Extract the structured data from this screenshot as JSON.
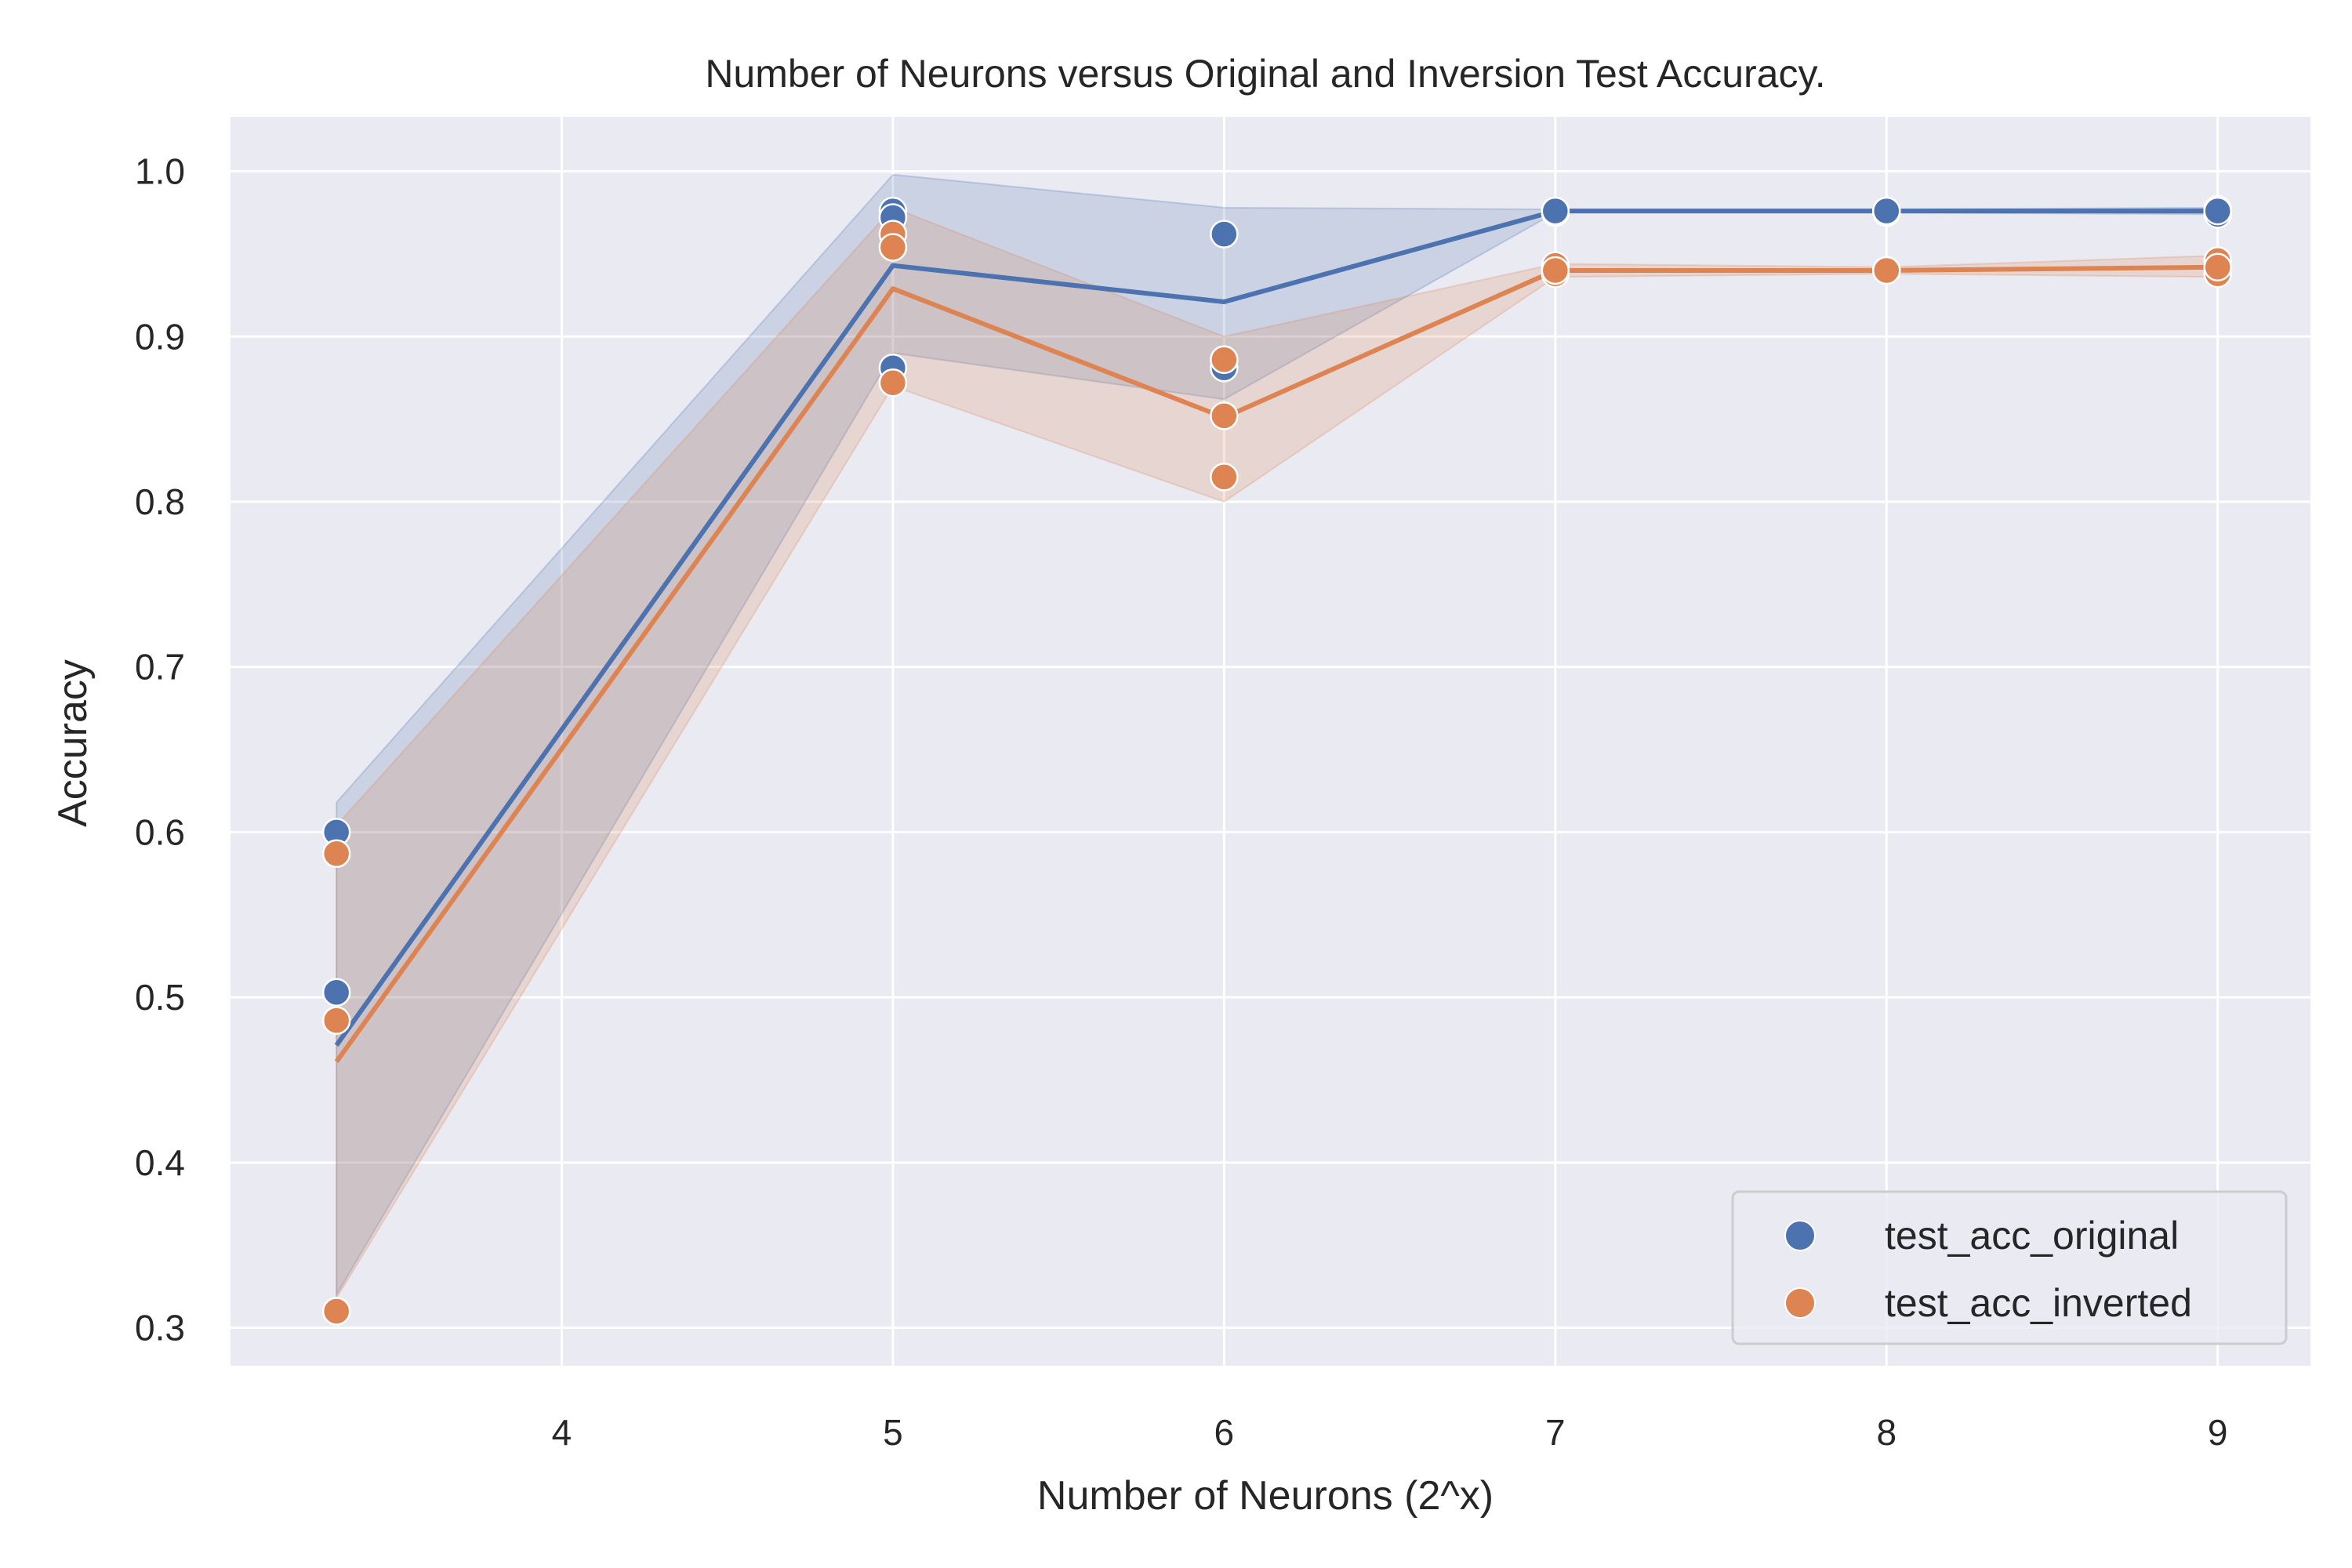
{
  "chart_data": {
    "type": "line",
    "title": "Number of Neurons versus Original and Inversion Test Accuracy.",
    "xlabel": "Number of Neurons (2^x)",
    "ylabel": "Accuracy",
    "xlim": [
      3.0,
      9.28
    ],
    "ylim": [
      0.277,
      1.033
    ],
    "xticks": [
      4,
      5,
      6,
      7,
      8,
      9
    ],
    "xtick_labels": [
      "4",
      "5",
      "6",
      "7",
      "8",
      "9"
    ],
    "yticks": [
      0.3,
      0.4,
      0.5,
      0.6,
      0.7,
      0.8,
      0.9,
      1.0
    ],
    "ytick_labels": [
      "0.3",
      "0.4",
      "0.5",
      "0.6",
      "0.7",
      "0.8",
      "0.9",
      "1.0"
    ],
    "grid": true,
    "legend_position": "bottom-right",
    "background_color": "#eaeaf2",
    "series": [
      {
        "name": "test_acc_original",
        "color": "#4c72b0",
        "x": [
          3.32,
          5,
          6,
          7,
          8,
          9
        ],
        "mean": [
          0.471,
          0.943,
          0.921,
          0.976,
          0.976,
          0.976
        ],
        "ci_low": [
          0.32,
          0.89,
          0.862,
          0.975,
          0.975,
          0.974
        ],
        "ci_high": [
          0.618,
          0.998,
          0.978,
          0.977,
          0.977,
          0.978
        ],
        "points": [
          [
            3.32,
            0.6
          ],
          [
            3.32,
            0.503
          ],
          [
            3.32,
            0.31
          ],
          [
            5,
            0.976
          ],
          [
            5,
            0.972
          ],
          [
            5,
            0.881
          ],
          [
            6,
            0.962
          ],
          [
            6,
            0.881
          ],
          [
            6,
            0.886
          ],
          [
            7,
            0.976
          ],
          [
            7,
            0.975
          ],
          [
            7,
            0.976
          ],
          [
            8,
            0.976
          ],
          [
            8,
            0.975
          ],
          [
            8,
            0.976
          ],
          [
            9,
            0.977
          ],
          [
            9,
            0.974
          ],
          [
            9,
            0.976
          ]
        ]
      },
      {
        "name": "test_acc_inverted",
        "color": "#dd8452",
        "x": [
          3.32,
          5,
          6,
          7,
          8,
          9
        ],
        "mean": [
          0.461,
          0.929,
          0.851,
          0.94,
          0.94,
          0.942
        ],
        "ci_low": [
          0.318,
          0.87,
          0.8,
          0.936,
          0.938,
          0.936
        ],
        "ci_high": [
          0.604,
          0.978,
          0.9,
          0.944,
          0.942,
          0.949
        ],
        "points": [
          [
            3.32,
            0.587
          ],
          [
            3.32,
            0.486
          ],
          [
            3.32,
            0.31
          ],
          [
            5,
            0.962
          ],
          [
            5,
            0.954
          ],
          [
            5,
            0.872
          ],
          [
            6,
            0.886
          ],
          [
            6,
            0.815
          ],
          [
            6,
            0.852
          ],
          [
            7,
            0.943
          ],
          [
            7,
            0.938
          ],
          [
            7,
            0.94
          ],
          [
            8,
            0.94
          ],
          [
            8,
            0.94
          ],
          [
            8,
            0.94
          ],
          [
            9,
            0.946
          ],
          [
            9,
            0.938
          ],
          [
            9,
            0.942
          ]
        ]
      }
    ]
  }
}
